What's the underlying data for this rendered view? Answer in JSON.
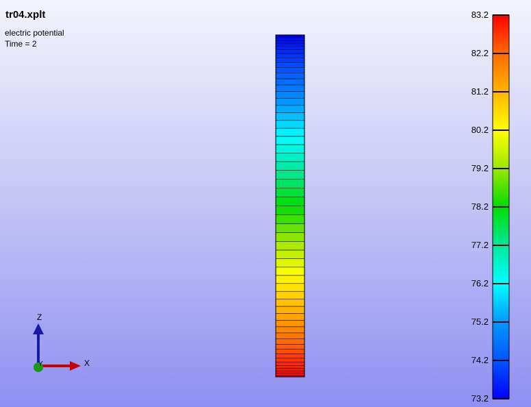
{
  "title": "tr04.xplt",
  "variable": "electric potential",
  "time_label": "Time = 2",
  "legend": {
    "max": 83.2,
    "min": 73.2,
    "ticks": [
      "83.2",
      "82.2",
      "81.2",
      "80.2",
      "79.2",
      "78.2",
      "77.2",
      "76.2",
      "75.2",
      "74.2",
      "73.2"
    ],
    "colors": [
      "#ff0000",
      "#ff6a00",
      "#ffb400",
      "#ffff00",
      "#9be700",
      "#00dd00",
      "#00e89a",
      "#00ffff",
      "#0099ff",
      "#0055ff",
      "#0000ff"
    ]
  },
  "triad": {
    "z_label": "Z",
    "x_label": "X",
    "y_label": "Y"
  }
}
